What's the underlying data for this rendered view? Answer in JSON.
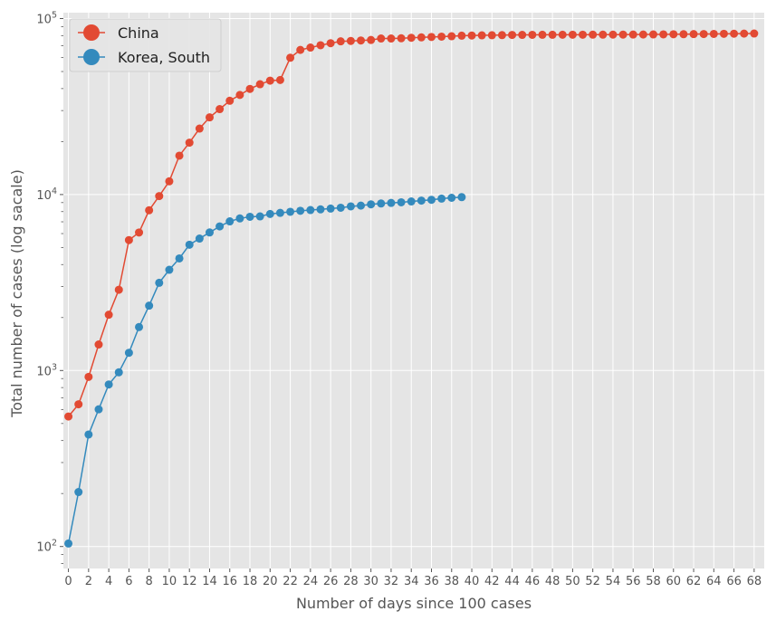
{
  "chart_data": {
    "type": "line",
    "title": "",
    "xlabel": "Number of days since 100 cases",
    "ylabel": "Total number of cases  (log sacale)",
    "y_scale": "log",
    "xlim": [
      -0.5,
      69
    ],
    "ylim": [
      75,
      108000
    ],
    "x_ticks": [
      0,
      2,
      4,
      6,
      8,
      10,
      12,
      14,
      16,
      18,
      20,
      22,
      24,
      26,
      28,
      30,
      32,
      34,
      36,
      38,
      40,
      42,
      44,
      46,
      48,
      50,
      52,
      54,
      56,
      58,
      60,
      62,
      64,
      66,
      68
    ],
    "y_ticks": [
      {
        "value": 100,
        "base": "10",
        "exp": "2"
      },
      {
        "value": 1000,
        "base": "10",
        "exp": "3"
      },
      {
        "value": 10000,
        "base": "10",
        "exp": "4"
      },
      {
        "value": 100000,
        "base": "10",
        "exp": "5"
      }
    ],
    "grid": true,
    "legend_position": "top-left",
    "background": "#e5e5e5",
    "series": [
      {
        "name": "China",
        "color": "#e24a33",
        "values": [
          548,
          643,
          920,
          1406,
          2075,
          2877,
          5509,
          6087,
          8141,
          9802,
          11891,
          16630,
          19716,
          23707,
          27440,
          30587,
          34110,
          36814,
          39829,
          42354,
          44386,
          44759,
          59895,
          66358,
          68413,
          70513,
          72434,
          74211,
          74619,
          75077,
          75550,
          77001,
          77022,
          77241,
          77754,
          78166,
          78600,
          78928,
          79356,
          79932,
          80136,
          80261,
          80386,
          80537,
          80690,
          80770,
          80823,
          80860,
          80887,
          80921,
          80932,
          80945,
          80977,
          81003,
          81033,
          81058,
          81102,
          81156,
          81250,
          81305,
          81435,
          81498,
          81591,
          81661,
          81782,
          81897,
          81999,
          82122,
          82198
        ]
      },
      {
        "name": "Korea, South",
        "color": "#348abd",
        "values": [
          104,
          204,
          433,
          602,
          833,
          977,
          1261,
          1766,
          2337,
          3150,
          3736,
          4335,
          5186,
          5621,
          6088,
          6593,
          7041,
          7314,
          7478,
          7513,
          7755,
          7869,
          7979,
          8086,
          8162,
          8236,
          8320,
          8413,
          8565,
          8652,
          8799,
          8897,
          8961,
          9037,
          9137,
          9241,
          9332,
          9478,
          9583,
          9661
        ]
      }
    ]
  }
}
